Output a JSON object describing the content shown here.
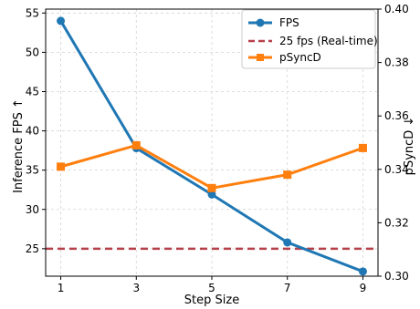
{
  "chart_data": {
    "type": "line",
    "xlabel": "Step Size",
    "ylabel_left": "Inference FPS ↑",
    "ylabel_right": "pSyncD ↓",
    "x": [
      1,
      3,
      5,
      7,
      9
    ],
    "x_ticks": [
      "1",
      "3",
      "5",
      "7",
      "9"
    ],
    "xlim": [
      0.6,
      9.4
    ],
    "ylim_left": [
      21.5,
      55.5
    ],
    "ylim_right": [
      0.3,
      0.4
    ],
    "yticks_left": [
      "25",
      "30",
      "35",
      "40",
      "45",
      "50",
      "55"
    ],
    "yticks_right": [
      "0.30",
      "0.32",
      "0.34",
      "0.36",
      "0.38",
      "0.40"
    ],
    "grid": true,
    "legend_position": "top-right",
    "series": [
      {
        "name": "FPS",
        "axis": "left",
        "values": [
          54.0,
          37.8,
          31.9,
          25.8,
          22.1
        ],
        "color": "#1f77b4",
        "marker": "circle",
        "style": "solid"
      },
      {
        "name": "25 fps (Real-time)",
        "axis": "left",
        "values": [
          25,
          25,
          25,
          25,
          25
        ],
        "color": "#b5404a",
        "marker": "none",
        "style": "dashed"
      },
      {
        "name": "pSyncD",
        "axis": "right",
        "values": [
          0.341,
          0.349,
          0.333,
          0.338,
          0.348
        ],
        "color": "#ff7f0e",
        "marker": "square",
        "style": "solid"
      }
    ]
  }
}
